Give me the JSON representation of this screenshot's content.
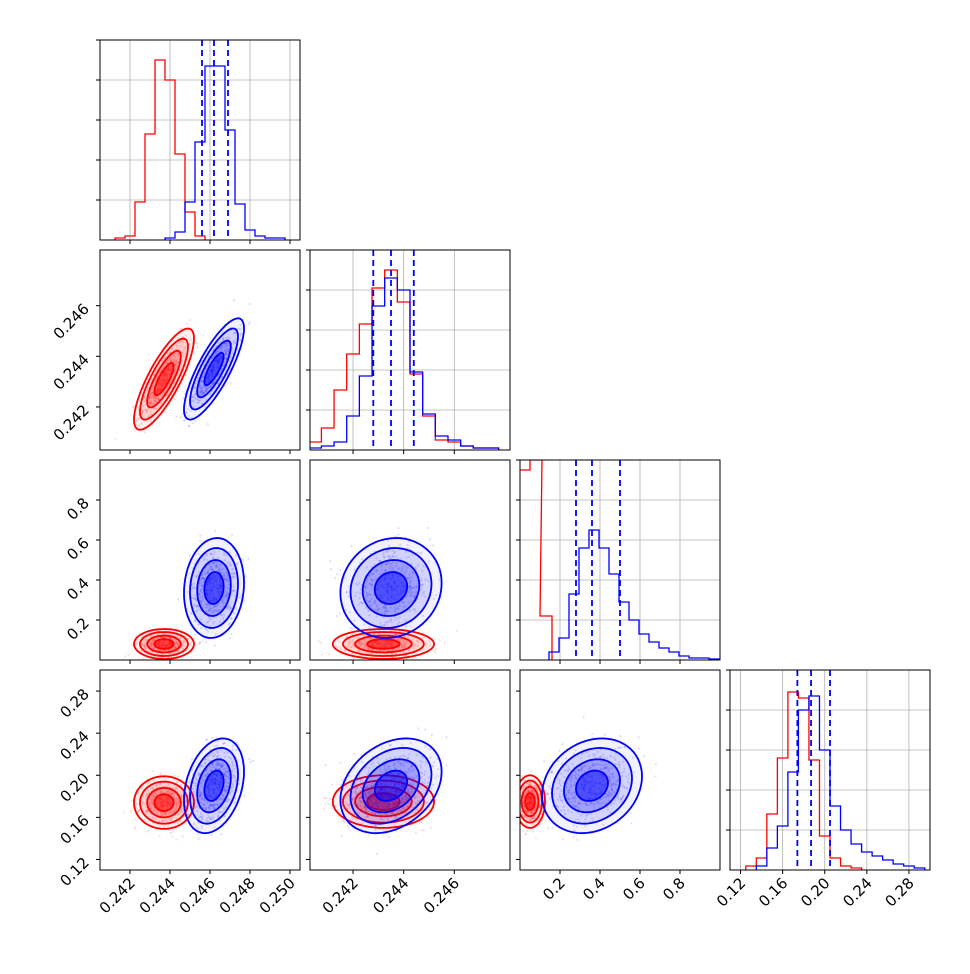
{
  "figure": {
    "type": "corner",
    "parameters": 4,
    "series_colors": {
      "red": "#ff0000",
      "blue": "#0000ff"
    },
    "grid": true
  },
  "chart_data": [
    {
      "type": "histogram",
      "row": 0,
      "col": 0,
      "grid": true,
      "xlim": [
        0.2405,
        0.2505
      ],
      "quantiles_blue": [
        0.2456,
        0.2462,
        0.2469
      ],
      "series": [
        {
          "name": "",
          "color": "#ff0000",
          "x": [
            0.2415,
            0.242,
            0.2425,
            0.243,
            0.2435,
            0.244,
            0.2445,
            0.245,
            0.2455
          ],
          "y": [
            0.01,
            0.02,
            0.19,
            0.53,
            0.9,
            0.8,
            0.43,
            0.14,
            0.02
          ]
        },
        {
          "name": "",
          "color": "#0000ff",
          "x": [
            0.244,
            0.2445,
            0.245,
            0.2455,
            0.246,
            0.2465,
            0.247,
            0.2475,
            0.248,
            0.2485,
            0.249,
            0.2495
          ],
          "y": [
            0.01,
            0.04,
            0.19,
            0.49,
            0.87,
            0.87,
            0.55,
            0.18,
            0.05,
            0.02,
            0.01,
            0.01
          ]
        }
      ]
    },
    {
      "type": "histogram",
      "row": 1,
      "col": 1,
      "grid": true,
      "xlim": [
        0.2403,
        0.2482
      ],
      "quantiles_blue": [
        0.2428,
        0.2435,
        0.2444
      ],
      "series": [
        {
          "name": "",
          "color": "#ff0000",
          "x": [
            0.2405,
            0.241,
            0.2415,
            0.242,
            0.2425,
            0.243,
            0.2435,
            0.244,
            0.2445,
            0.245,
            0.2455,
            0.246,
            0.2465,
            0.247,
            0.2475
          ],
          "y": [
            0.04,
            0.11,
            0.3,
            0.48,
            0.63,
            0.81,
            0.9,
            0.74,
            0.38,
            0.17,
            0.05,
            0.04,
            0.02,
            0.01,
            0.01
          ]
        },
        {
          "name": "",
          "color": "#0000ff",
          "x": [
            0.2405,
            0.241,
            0.2415,
            0.242,
            0.2425,
            0.243,
            0.2435,
            0.244,
            0.2445,
            0.245,
            0.2455,
            0.246,
            0.2465,
            0.247,
            0.2475
          ],
          "y": [
            0.01,
            0.02,
            0.04,
            0.17,
            0.37,
            0.72,
            0.86,
            0.8,
            0.39,
            0.18,
            0.07,
            0.05,
            0.02,
            0.01,
            0.01
          ]
        }
      ]
    },
    {
      "type": "histogram",
      "row": 2,
      "col": 2,
      "grid": true,
      "xlim": [
        0.0,
        1.0
      ],
      "quantiles_blue": [
        0.28,
        0.36,
        0.5
      ],
      "series": [
        {
          "name": "",
          "color": "#ff0000",
          "x": [
            0.02,
            0.08,
            0.13
          ],
          "y": [
            0.95,
            1.0,
            0.22
          ]
        },
        {
          "name": "",
          "color": "#0000ff",
          "x": [
            0.17,
            0.22,
            0.27,
            0.32,
            0.37,
            0.42,
            0.47,
            0.52,
            0.57,
            0.62,
            0.67,
            0.72,
            0.77,
            0.82,
            0.87,
            0.92,
            0.97
          ],
          "y": [
            0.04,
            0.11,
            0.33,
            0.56,
            0.65,
            0.56,
            0.43,
            0.29,
            0.2,
            0.13,
            0.09,
            0.06,
            0.04,
            0.02,
            0.01,
            0.01,
            0.005
          ]
        }
      ]
    },
    {
      "type": "histogram",
      "row": 3,
      "col": 3,
      "grid": true,
      "xlim": [
        0.11,
        0.3
      ],
      "quantiles_blue": [
        0.174,
        0.187,
        0.205
      ],
      "series": [
        {
          "name": "",
          "color": "#ff0000",
          "x": [
            0.13,
            0.14,
            0.15,
            0.16,
            0.17,
            0.18,
            0.19,
            0.2,
            0.21,
            0.22,
            0.23
          ],
          "y": [
            0.02,
            0.06,
            0.28,
            0.56,
            0.89,
            0.86,
            0.55,
            0.17,
            0.06,
            0.02,
            0.01
          ]
        },
        {
          "name": "",
          "color": "#0000ff",
          "x": [
            0.14,
            0.15,
            0.16,
            0.17,
            0.18,
            0.19,
            0.2,
            0.21,
            0.22,
            0.23,
            0.24,
            0.25,
            0.26,
            0.27,
            0.28,
            0.29
          ],
          "y": [
            0.02,
            0.11,
            0.22,
            0.49,
            0.8,
            0.87,
            0.6,
            0.32,
            0.2,
            0.13,
            0.09,
            0.07,
            0.05,
            0.03,
            0.02,
            0.01
          ]
        }
      ]
    },
    {
      "type": "scatter",
      "row": 1,
      "col": 0,
      "grid": false,
      "xlim": [
        0.2405,
        0.2505
      ],
      "ylim": [
        0.2403,
        0.2482
      ],
      "series": [
        {
          "name": "",
          "color": "#ff0000",
          "center": [
            0.2437,
            0.2431
          ],
          "sd": [
            0.0006,
            0.0008
          ],
          "corr": 0.8
        },
        {
          "name": "",
          "color": "#0000ff",
          "center": [
            0.2462,
            0.2435
          ],
          "sd": [
            0.0006,
            0.0008
          ],
          "corr": 0.8
        }
      ]
    },
    {
      "type": "scatter",
      "row": 2,
      "col": 0,
      "grid": false,
      "xlim": [
        0.2405,
        0.2505
      ],
      "ylim": [
        0.0,
        1.0
      ],
      "series": [
        {
          "name": "",
          "color": "#ff0000",
          "center": [
            0.2437,
            0.08
          ],
          "sd": [
            0.0006,
            0.03
          ],
          "corr": 0.0
        },
        {
          "name": "",
          "color": "#0000ff",
          "center": [
            0.2462,
            0.36
          ],
          "sd": [
            0.0006,
            0.1
          ],
          "corr": 0.1
        }
      ]
    },
    {
      "type": "scatter",
      "row": 2,
      "col": 1,
      "grid": false,
      "xlim": [
        0.2403,
        0.2482
      ],
      "ylim": [
        0.0,
        1.0
      ],
      "series": [
        {
          "name": "",
          "color": "#ff0000",
          "center": [
            0.2432,
            0.08
          ],
          "sd": [
            0.0008,
            0.03
          ],
          "corr": 0.0
        },
        {
          "name": "",
          "color": "#0000ff",
          "center": [
            0.2435,
            0.36
          ],
          "sd": [
            0.0008,
            0.1
          ],
          "corr": 0.1
        }
      ]
    },
    {
      "type": "scatter",
      "row": 3,
      "col": 0,
      "grid": false,
      "xlim": [
        0.2405,
        0.2505
      ],
      "ylim": [
        0.11,
        0.3
      ],
      "series": [
        {
          "name": "",
          "color": "#ff0000",
          "center": [
            0.2437,
            0.174
          ],
          "sd": [
            0.0006,
            0.01
          ],
          "corr": 0.0
        },
        {
          "name": "",
          "color": "#0000ff",
          "center": [
            0.2462,
            0.19
          ],
          "sd": [
            0.0006,
            0.018
          ],
          "corr": 0.3
        }
      ]
    },
    {
      "type": "scatter",
      "row": 3,
      "col": 1,
      "grid": false,
      "xlim": [
        0.2403,
        0.2482
      ],
      "ylim": [
        0.11,
        0.3
      ],
      "series": [
        {
          "name": "",
          "color": "#ff0000",
          "center": [
            0.2432,
            0.175
          ],
          "sd": [
            0.0008,
            0.01
          ],
          "corr": 0.0
        },
        {
          "name": "",
          "color": "#0000ff",
          "center": [
            0.2435,
            0.19
          ],
          "sd": [
            0.0008,
            0.018
          ],
          "corr": 0.3
        }
      ]
    },
    {
      "type": "scatter",
      "row": 3,
      "col": 2,
      "grid": false,
      "xlim": [
        0.0,
        1.0
      ],
      "ylim": [
        0.11,
        0.3
      ],
      "series": [
        {
          "name": "",
          "color": "#ff0000",
          "center": [
            0.05,
            0.175
          ],
          "sd": [
            0.03,
            0.01
          ],
          "corr": 0.0
        },
        {
          "name": "",
          "color": "#0000ff",
          "center": [
            0.36,
            0.19
          ],
          "sd": [
            0.1,
            0.018
          ],
          "corr": 0.2
        }
      ]
    }
  ],
  "axes": {
    "x_ticks": [
      {
        "col": 0,
        "values": [
          0.242,
          0.244,
          0.246,
          0.248,
          0.25
        ],
        "labels": [
          "0.242",
          "0.244",
          "0.246",
          "0.248",
          "0.250"
        ]
      },
      {
        "col": 1,
        "values": [
          0.242,
          0.244,
          0.246
        ],
        "labels": [
          "0.242",
          "0.244",
          "0.246"
        ]
      },
      {
        "col": 2,
        "values": [
          0.2,
          0.4,
          0.6,
          0.8
        ],
        "labels": [
          "0.2",
          "0.4",
          "0.6",
          "0.8"
        ]
      },
      {
        "col": 3,
        "values": [
          0.12,
          0.16,
          0.2,
          0.24,
          0.28
        ],
        "labels": [
          "0.12",
          "0.16",
          "0.20",
          "0.24",
          "0.28"
        ]
      }
    ],
    "y_ticks": [
      {
        "row": 1,
        "values": [
          0.242,
          0.244,
          0.246
        ],
        "labels": [
          "0.242",
          "0.244",
          "0.246"
        ]
      },
      {
        "row": 2,
        "values": [
          0.2,
          0.4,
          0.6,
          0.8
        ],
        "labels": [
          "0.2",
          "0.4",
          "0.6",
          "0.8"
        ]
      },
      {
        "row": 3,
        "values": [
          0.12,
          0.16,
          0.2,
          0.24,
          0.28
        ],
        "labels": [
          "0.12",
          "0.16",
          "0.20",
          "0.24",
          "0.28"
        ]
      }
    ]
  }
}
